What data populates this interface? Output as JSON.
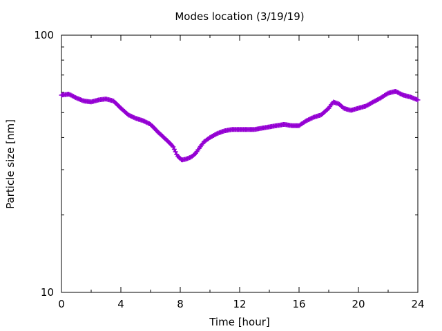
{
  "chart_data": {
    "type": "line",
    "title": "Modes location (3/19/19)",
    "xlabel": "Time [hour]",
    "ylabel": "Particle size [nm]",
    "xlim": [
      0,
      24
    ],
    "ylim": [
      10,
      100
    ],
    "yscale": "log",
    "xticks": [
      "0",
      "4",
      "8",
      "12",
      "16",
      "20",
      "24"
    ],
    "yticks": [
      "10",
      "100"
    ],
    "grid": false,
    "legend": "none",
    "series": [
      {
        "color": "#9400d3",
        "marker": "plus",
        "x": [
          0,
          0.5,
          1,
          1.5,
          2,
          2.5,
          3,
          3.5,
          4,
          4.5,
          5,
          5.5,
          6,
          6.5,
          7,
          7.5,
          7.8,
          8.1,
          8.4,
          8.7,
          9,
          9.3,
          9.6,
          10,
          10.5,
          11,
          11.5,
          12,
          12.5,
          13,
          13.5,
          14,
          14.5,
          15,
          15.5,
          16,
          16.5,
          17,
          17.5,
          18,
          18.3,
          18.7,
          19,
          19.5,
          20,
          20.5,
          21,
          21.5,
          22,
          22.5,
          23,
          23.5,
          24
        ],
        "y": [
          58.5,
          59,
          57,
          55.5,
          55,
          56,
          56.5,
          55.5,
          52,
          49,
          47.5,
          46.5,
          45,
          42,
          39.5,
          37,
          34,
          32.7,
          33,
          33.5,
          34.5,
          36.5,
          38.5,
          40,
          41.5,
          42.5,
          43,
          43,
          43,
          43,
          43.5,
          44,
          44.5,
          45,
          44.5,
          44.5,
          46.5,
          48,
          49,
          52,
          55,
          54,
          52,
          51,
          52,
          53,
          55,
          57,
          59.5,
          60.5,
          58.5,
          57.5,
          56
        ]
      }
    ]
  }
}
